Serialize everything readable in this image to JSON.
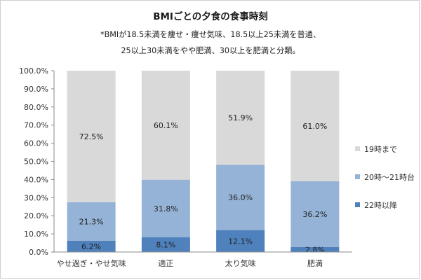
{
  "chart_data": {
    "type": "bar",
    "stacked": true,
    "title": "BMIごとの夕食の食事時刻",
    "notes": [
      "*BMIが18.5未満を痩せ・痩せ気味、18.5以上25未満を普通、",
      "25以上30未満をやや肥満、30以上を肥満と分類。"
    ],
    "categories": [
      "やせ過ぎ・やせ気味",
      "適正",
      "太り気味",
      "肥満"
    ],
    "series": [
      {
        "name": "22時以降",
        "values": [
          6.2,
          8.1,
          12.1,
          2.8
        ],
        "labels": [
          "6.2%",
          "8.1%",
          "12.1%",
          "2.8%"
        ],
        "color": "#4f81bd"
      },
      {
        "name": "20時～21時台",
        "values": [
          21.3,
          31.8,
          36.0,
          36.2
        ],
        "labels": [
          "21.3%",
          "31.8%",
          "36.0%",
          "36.2%"
        ],
        "color": "#95b3d7"
      },
      {
        "name": "19時まで",
        "values": [
          72.5,
          60.1,
          51.9,
          61.0
        ],
        "labels": [
          "72.5%",
          "60.1%",
          "51.9%",
          "61.0%"
        ],
        "color": "#d9d9d9"
      }
    ],
    "yticks": [
      "0.0%",
      "10.0%",
      "20.0%",
      "30.0%",
      "40.0%",
      "50.0%",
      "60.0%",
      "70.0%",
      "80.0%",
      "90.0%",
      "100.0%"
    ],
    "ylim": [
      0,
      100
    ],
    "grid": false,
    "legend": "right",
    "legend_order": [
      "19時まで",
      "20時～21時台",
      "22時以降"
    ]
  }
}
